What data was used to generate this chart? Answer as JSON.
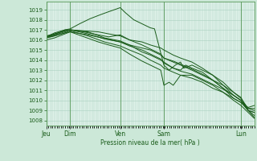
{
  "background_color": "#cce8d8",
  "plot_bg_color": "#ddf0e8",
  "grid_color": "#aad0c0",
  "line_color": "#1a5c1a",
  "spine_color": "#5a9a5a",
  "ylabel": "Pression niveau de la mer( hPa )",
  "ylim": [
    1007.5,
    1019.8
  ],
  "yticks": [
    1008,
    1009,
    1010,
    1011,
    1012,
    1013,
    1014,
    1015,
    1016,
    1017,
    1018,
    1019
  ],
  "xtick_labels": [
    "Jeu",
    "Dim",
    "Ven",
    "Sam",
    "Lun"
  ],
  "xtick_positions": [
    0.0,
    0.115,
    0.355,
    0.565,
    0.935
  ],
  "vline_positions": [
    0.0,
    0.115,
    0.355,
    0.565,
    0.935,
    1.0
  ],
  "series": [
    [
      [
        0.0,
        1016.3
      ],
      [
        0.04,
        1016.7
      ],
      [
        0.09,
        1017.0
      ],
      [
        0.115,
        1017.1
      ],
      [
        0.16,
        1017.6
      ],
      [
        0.21,
        1018.1
      ],
      [
        0.26,
        1018.5
      ],
      [
        0.3,
        1018.8
      ],
      [
        0.355,
        1019.2
      ],
      [
        0.38,
        1018.7
      ],
      [
        0.42,
        1018.0
      ],
      [
        0.46,
        1017.6
      ],
      [
        0.5,
        1017.2
      ],
      [
        0.52,
        1017.1
      ],
      [
        0.565,
        1013.5
      ],
      [
        0.59,
        1013.0
      ],
      [
        0.62,
        1013.5
      ],
      [
        0.645,
        1013.8
      ],
      [
        0.66,
        1013.2
      ],
      [
        0.7,
        1013.5
      ],
      [
        0.75,
        1013.0
      ],
      [
        0.8,
        1012.5
      ],
      [
        0.85,
        1011.8
      ],
      [
        0.9,
        1010.8
      ],
      [
        0.935,
        1010.3
      ],
      [
        0.97,
        1009.0
      ],
      [
        1.0,
        1008.3
      ]
    ],
    [
      [
        0.0,
        1016.2
      ],
      [
        0.04,
        1016.5
      ],
      [
        0.09,
        1017.0
      ],
      [
        0.115,
        1017.0
      ],
      [
        0.18,
        1016.8
      ],
      [
        0.25,
        1016.5
      ],
      [
        0.3,
        1016.3
      ],
      [
        0.355,
        1016.5
      ],
      [
        0.4,
        1016.0
      ],
      [
        0.46,
        1015.8
      ],
      [
        0.5,
        1015.5
      ],
      [
        0.55,
        1015.2
      ],
      [
        0.565,
        1015.0
      ],
      [
        0.61,
        1014.5
      ],
      [
        0.645,
        1014.2
      ],
      [
        0.7,
        1013.8
      ],
      [
        0.75,
        1013.2
      ],
      [
        0.8,
        1012.5
      ],
      [
        0.85,
        1011.5
      ],
      [
        0.9,
        1010.5
      ],
      [
        0.935,
        1010.0
      ],
      [
        0.97,
        1009.0
      ],
      [
        1.0,
        1008.5
      ]
    ],
    [
      [
        0.0,
        1016.3
      ],
      [
        0.04,
        1016.6
      ],
      [
        0.09,
        1016.9
      ],
      [
        0.115,
        1017.0
      ],
      [
        0.18,
        1016.9
      ],
      [
        0.25,
        1016.8
      ],
      [
        0.3,
        1016.6
      ],
      [
        0.355,
        1016.4
      ],
      [
        0.4,
        1016.0
      ],
      [
        0.46,
        1015.5
      ],
      [
        0.5,
        1015.1
      ],
      [
        0.55,
        1014.6
      ],
      [
        0.565,
        1014.2
      ],
      [
        0.61,
        1013.9
      ],
      [
        0.645,
        1013.6
      ],
      [
        0.7,
        1013.1
      ],
      [
        0.75,
        1012.6
      ],
      [
        0.8,
        1012.0
      ],
      [
        0.85,
        1011.2
      ],
      [
        0.9,
        1010.2
      ],
      [
        0.935,
        1009.8
      ],
      [
        0.97,
        1009.0
      ],
      [
        1.0,
        1008.8
      ]
    ],
    [
      [
        0.0,
        1016.4
      ],
      [
        0.04,
        1016.6
      ],
      [
        0.09,
        1016.9
      ],
      [
        0.115,
        1017.0
      ],
      [
        0.2,
        1016.8
      ],
      [
        0.28,
        1016.2
      ],
      [
        0.355,
        1015.9
      ],
      [
        0.4,
        1015.5
      ],
      [
        0.46,
        1015.2
      ],
      [
        0.5,
        1015.0
      ],
      [
        0.55,
        1014.5
      ],
      [
        0.565,
        1014.2
      ],
      [
        0.61,
        1013.8
      ],
      [
        0.645,
        1013.5
      ],
      [
        0.7,
        1013.0
      ],
      [
        0.75,
        1012.5
      ],
      [
        0.8,
        1012.0
      ],
      [
        0.85,
        1011.5
      ],
      [
        0.9,
        1010.8
      ],
      [
        0.935,
        1010.2
      ],
      [
        0.97,
        1009.2
      ],
      [
        1.0,
        1009.0
      ]
    ],
    [
      [
        0.0,
        1016.3
      ],
      [
        0.04,
        1016.5
      ],
      [
        0.09,
        1016.8
      ],
      [
        0.115,
        1017.0
      ],
      [
        0.2,
        1016.6
      ],
      [
        0.28,
        1016.1
      ],
      [
        0.355,
        1015.8
      ],
      [
        0.4,
        1015.4
      ],
      [
        0.46,
        1015.0
      ],
      [
        0.5,
        1014.6
      ],
      [
        0.55,
        1014.1
      ],
      [
        0.565,
        1013.7
      ],
      [
        0.61,
        1013.2
      ],
      [
        0.645,
        1012.9
      ],
      [
        0.7,
        1012.6
      ],
      [
        0.75,
        1012.1
      ],
      [
        0.8,
        1011.6
      ],
      [
        0.85,
        1011.1
      ],
      [
        0.9,
        1010.5
      ],
      [
        0.935,
        1010.0
      ],
      [
        0.97,
        1009.2
      ],
      [
        1.0,
        1009.2
      ]
    ],
    [
      [
        0.0,
        1016.2
      ],
      [
        0.04,
        1016.4
      ],
      [
        0.09,
        1016.7
      ],
      [
        0.115,
        1016.9
      ],
      [
        0.2,
        1016.4
      ],
      [
        0.28,
        1015.8
      ],
      [
        0.355,
        1015.4
      ],
      [
        0.4,
        1015.0
      ],
      [
        0.46,
        1014.5
      ],
      [
        0.5,
        1014.0
      ],
      [
        0.55,
        1013.5
      ],
      [
        0.565,
        1013.2
      ],
      [
        0.61,
        1012.8
      ],
      [
        0.645,
        1012.5
      ],
      [
        0.7,
        1012.2
      ],
      [
        0.75,
        1011.8
      ],
      [
        0.8,
        1011.2
      ],
      [
        0.85,
        1010.8
      ],
      [
        0.9,
        1010.2
      ],
      [
        0.935,
        1009.8
      ],
      [
        0.97,
        1009.3
      ],
      [
        1.0,
        1009.5
      ]
    ],
    [
      [
        0.0,
        1016.0
      ],
      [
        0.04,
        1016.2
      ],
      [
        0.09,
        1016.6
      ],
      [
        0.115,
        1016.8
      ],
      [
        0.25,
        1015.8
      ],
      [
        0.3,
        1015.5
      ],
      [
        0.355,
        1015.2
      ],
      [
        0.4,
        1014.6
      ],
      [
        0.46,
        1013.9
      ],
      [
        0.5,
        1013.5
      ],
      [
        0.55,
        1013.0
      ],
      [
        0.565,
        1011.5
      ],
      [
        0.59,
        1011.8
      ],
      [
        0.61,
        1011.5
      ],
      [
        0.645,
        1012.5
      ],
      [
        0.7,
        1012.5
      ],
      [
        0.75,
        1012.0
      ],
      [
        0.8,
        1011.5
      ],
      [
        0.85,
        1010.8
      ],
      [
        0.9,
        1010.0
      ],
      [
        0.935,
        1009.5
      ],
      [
        0.97,
        1008.8
      ],
      [
        1.0,
        1008.2
      ]
    ],
    [
      [
        0.0,
        1016.2
      ],
      [
        0.04,
        1016.4
      ],
      [
        0.09,
        1016.7
      ],
      [
        0.115,
        1016.8
      ],
      [
        0.2,
        1016.5
      ],
      [
        0.355,
        1015.8
      ],
      [
        0.4,
        1015.5
      ],
      [
        0.46,
        1014.8
      ],
      [
        0.5,
        1014.5
      ],
      [
        0.55,
        1014.0
      ],
      [
        0.565,
        1013.8
      ],
      [
        0.61,
        1013.2
      ],
      [
        0.645,
        1013.0
      ],
      [
        0.67,
        1013.5
      ],
      [
        0.7,
        1013.2
      ],
      [
        0.75,
        1012.8
      ],
      [
        0.8,
        1012.0
      ],
      [
        0.85,
        1011.2
      ],
      [
        0.9,
        1010.5
      ],
      [
        0.935,
        1010.0
      ],
      [
        0.97,
        1009.0
      ],
      [
        1.0,
        1008.8
      ]
    ]
  ]
}
